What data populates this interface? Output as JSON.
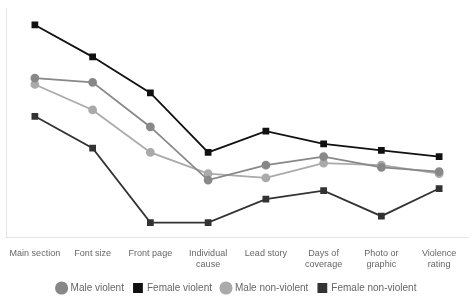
{
  "chart_data": {
    "type": "line",
    "categories": [
      "Main section",
      "Font size",
      "Front page",
      "Individual\ncause",
      "Lead story",
      "Days of\ncoverage",
      "Photo or\ngraphic",
      "Violence\nrating"
    ],
    "series": [
      {
        "name": "Male violent",
        "color": "#888888",
        "marker": "circle",
        "values": [
          0.75,
          0.73,
          0.52,
          0.27,
          0.34,
          0.38,
          0.33,
          0.31
        ]
      },
      {
        "name": "Female violent",
        "color": "#111111",
        "marker": "square",
        "values": [
          1.0,
          0.85,
          0.68,
          0.4,
          0.5,
          0.44,
          0.41,
          0.38
        ]
      },
      {
        "name": "Male non-violent",
        "color": "#aaaaaa",
        "marker": "circle",
        "values": [
          0.72,
          0.6,
          0.4,
          0.3,
          0.28,
          0.35,
          0.34,
          0.3
        ]
      },
      {
        "name": "Female non-violent",
        "color": "#333333",
        "marker": "square",
        "values": [
          0.57,
          0.42,
          0.07,
          0.07,
          0.18,
          0.22,
          0.1,
          0.23
        ]
      }
    ],
    "ylim": [
      0.0,
      1.08
    ],
    "tick_labels": "x",
    "grid": false,
    "legend": "bottom"
  }
}
